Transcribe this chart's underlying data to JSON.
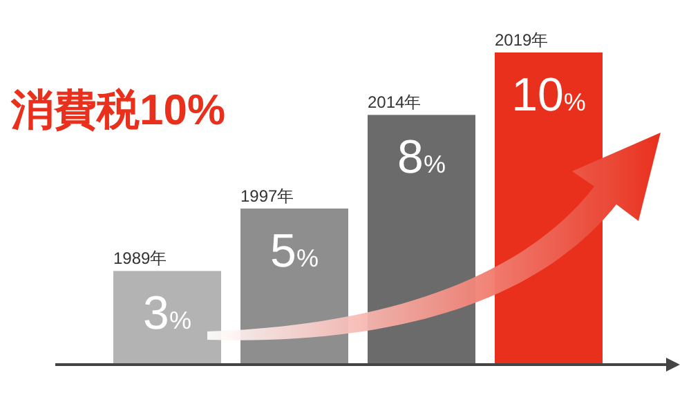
{
  "chart_data": {
    "type": "bar",
    "title": "消費税10%",
    "categories": [
      "1989年",
      "1997年",
      "2014年",
      "2019年"
    ],
    "values": [
      3,
      5,
      8,
      10
    ],
    "colors": [
      "#b3b3b3",
      "#8e8e8e",
      "#6b6b6b",
      "#e8301c"
    ],
    "value_labels": [
      "3%",
      "5%",
      "8%",
      "10%"
    ]
  }
}
